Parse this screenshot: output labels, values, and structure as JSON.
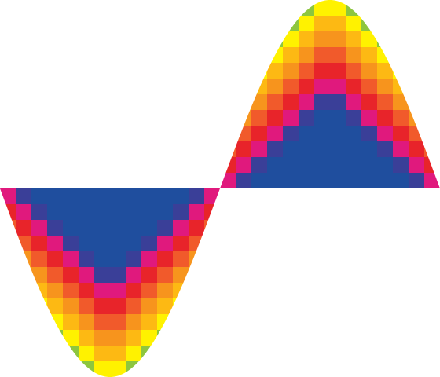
{
  "artwork": {
    "palette": [
      "#1f4e9e",
      "#3a3f98",
      "#e0197d",
      "#e8242a",
      "#f15a2b",
      "#f7941d",
      "#fdb913",
      "#fff200",
      "#8dc63f",
      "#00a651",
      "#00aeef"
    ],
    "background": "#ffffff"
  }
}
